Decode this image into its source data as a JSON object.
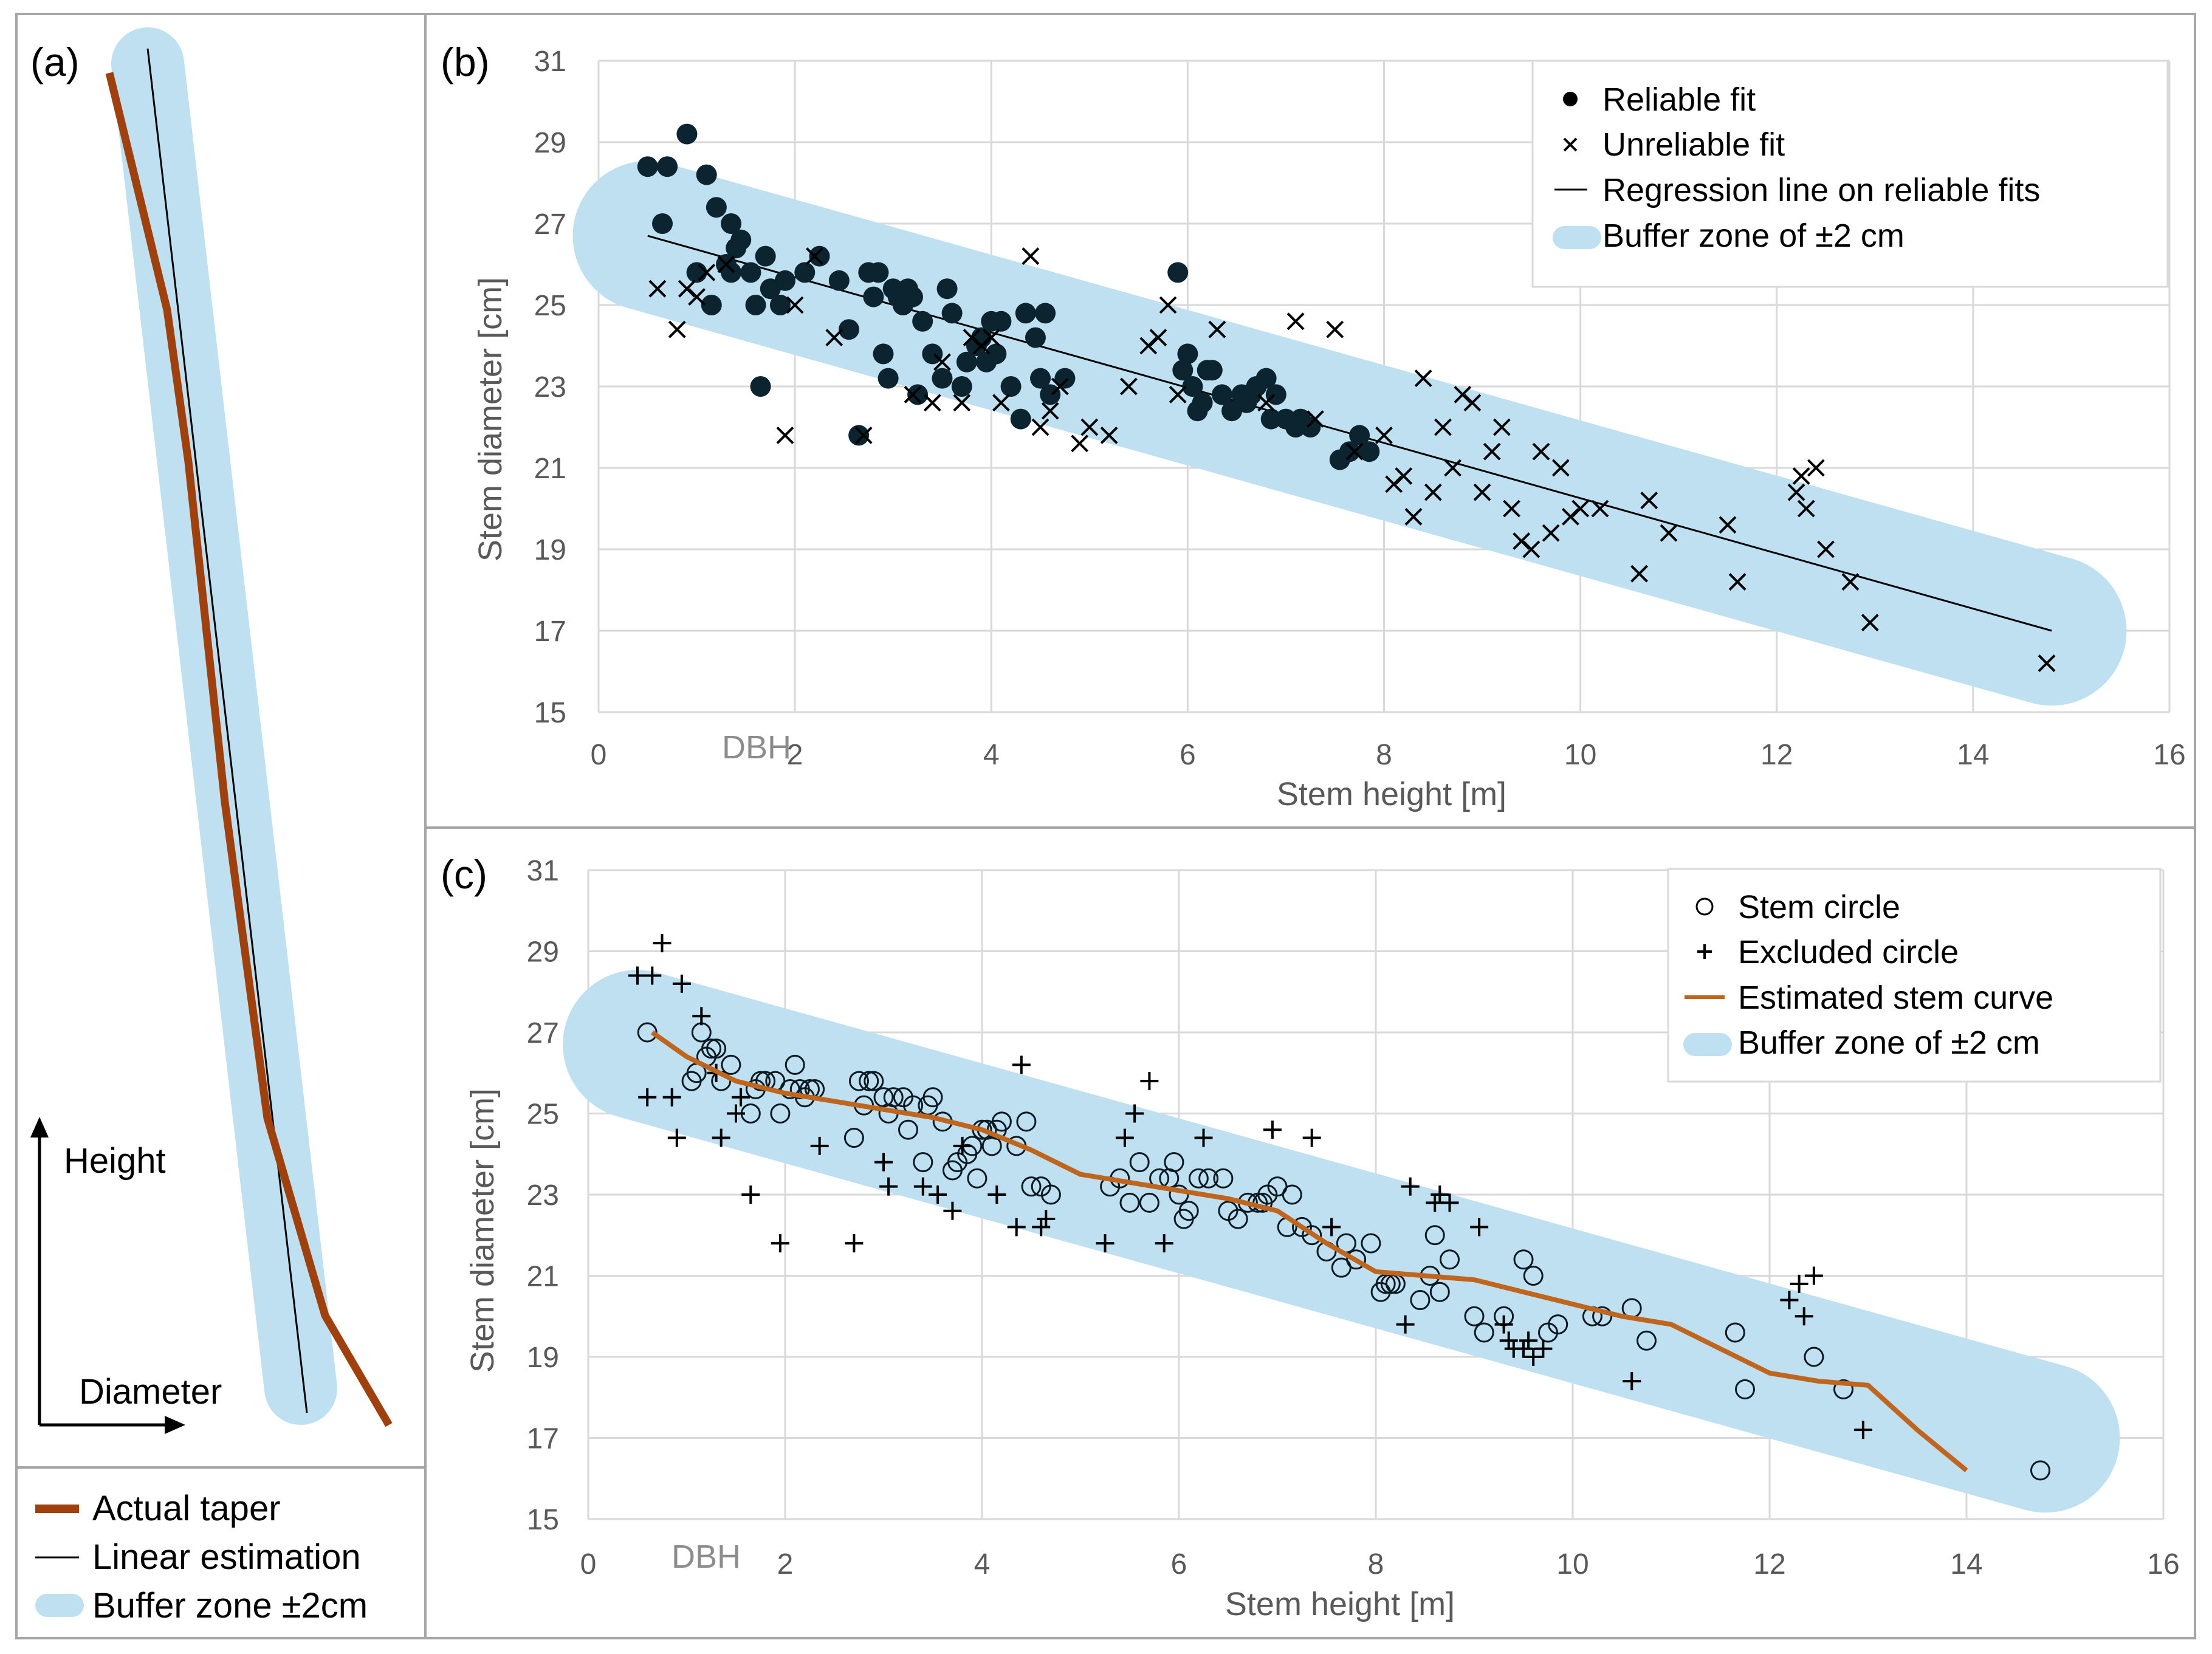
{
  "colors": {
    "buffer": "#bfe0f1",
    "taper": "#a0410d",
    "curve": "#c0651e",
    "grid": "#d9d9d9",
    "axis_text": "#595959"
  },
  "panel_a": {
    "label": "(a)",
    "height_label": "Height",
    "diameter_label": "Diameter",
    "legend": [
      {
        "label": "Actual taper",
        "kind": "thick-line"
      },
      {
        "label": "Linear estimation",
        "kind": "thin-line"
      },
      {
        "label": "Buffer zone ±2cm",
        "kind": "band"
      }
    ]
  },
  "chart_data": [
    {
      "id": "b",
      "type": "scatter",
      "panel_label": "(b)",
      "xlabel": "Stem height [m]",
      "ylabel": "Stem diameter [cm]",
      "xlim": [
        0,
        16
      ],
      "ylim": [
        15,
        31
      ],
      "xticks": [
        0,
        2,
        4,
        6,
        8,
        10,
        12,
        14,
        16
      ],
      "yticks": [
        15,
        17,
        19,
        21,
        23,
        25,
        27,
        29,
        31
      ],
      "grid": true,
      "dbh_marker": {
        "label": "DBH",
        "x": 1.3
      },
      "legend_position": "top-right",
      "legend": [
        "Reliable fit",
        "Unreliable fit",
        "Regression line on reliable fits",
        "Buffer zone of ±2 cm"
      ],
      "buffer": {
        "x": [
          0.5,
          14.8
        ],
        "y": [
          26.7,
          17.0
        ],
        "halfwidth_cm": 2
      },
      "regression_line": {
        "x": [
          0.5,
          14.8
        ],
        "y": [
          26.7,
          17.0
        ]
      },
      "series": [
        {
          "name": "Reliable fit",
          "marker": "filled-circle",
          "x": [
            0.5,
            0.65,
            0.7,
            0.9,
            1.0,
            1.1,
            1.15,
            1.2,
            1.3,
            1.35,
            1.35,
            1.4,
            1.45,
            1.55,
            1.6,
            1.65,
            1.7,
            1.75,
            1.85,
            1.9,
            2.1,
            2.25,
            2.45,
            2.55,
            2.65,
            2.75,
            2.8,
            2.85,
            2.9,
            2.95,
            3.0,
            3.05,
            3.1,
            3.15,
            3.2,
            3.25,
            3.3,
            3.4,
            3.5,
            3.55,
            3.6,
            3.7,
            3.75,
            3.85,
            3.9,
            3.95,
            4.0,
            4.05,
            4.1,
            4.2,
            4.3,
            4.35,
            4.45,
            4.5,
            4.55,
            4.6,
            4.75,
            5.9,
            5.95,
            6.0,
            6.05,
            6.1,
            6.15,
            6.2,
            6.25,
            6.35,
            6.45,
            6.55,
            6.6,
            6.65,
            6.7,
            6.8,
            6.85,
            6.9,
            7.0,
            7.1,
            7.15,
            7.25,
            7.55,
            7.65,
            7.75,
            7.85
          ],
          "y": [
            28.4,
            27.0,
            28.4,
            29.2,
            25.8,
            28.2,
            25.0,
            27.4,
            26.0,
            25.8,
            27.0,
            26.4,
            26.6,
            25.8,
            25.0,
            23.0,
            26.2,
            25.4,
            25.0,
            25.6,
            25.8,
            26.2,
            25.6,
            24.4,
            21.8,
            25.8,
            25.2,
            25.8,
            23.8,
            23.2,
            25.4,
            25.2,
            25.0,
            25.4,
            25.2,
            22.8,
            24.6,
            23.8,
            23.2,
            25.4,
            24.8,
            23.0,
            23.6,
            24.0,
            24.2,
            23.6,
            24.6,
            23.8,
            24.6,
            23.0,
            22.2,
            24.8,
            24.2,
            23.2,
            24.8,
            22.8,
            23.2,
            25.8,
            23.4,
            23.8,
            23.0,
            22.4,
            22.6,
            23.4,
            23.4,
            22.8,
            22.4,
            22.8,
            22.6,
            22.8,
            23.0,
            23.2,
            22.2,
            22.8,
            22.2,
            22.0,
            22.2,
            22.0,
            21.2,
            21.4,
            21.8,
            21.4
          ]
        },
        {
          "name": "Unreliable fit",
          "marker": "x",
          "x": [
            0.6,
            0.8,
            0.9,
            1.0,
            1.1,
            1.3,
            1.9,
            2.0,
            2.2,
            2.4,
            2.7,
            3.2,
            3.4,
            3.5,
            3.7,
            3.8,
            3.9,
            4.0,
            4.1,
            4.4,
            4.5,
            4.6,
            4.7,
            4.9,
            5.0,
            5.2,
            5.4,
            5.6,
            5.7,
            5.8,
            5.9,
            6.3,
            6.8,
            7.1,
            7.3,
            7.5,
            7.7,
            8.0,
            8.1,
            8.2,
            8.3,
            8.4,
            8.5,
            8.6,
            8.7,
            8.8,
            8.9,
            9.0,
            9.1,
            9.2,
            9.3,
            9.4,
            9.5,
            9.6,
            9.7,
            9.8,
            9.9,
            10.0,
            10.2,
            10.6,
            10.7,
            10.9,
            11.5,
            11.6,
            12.2,
            12.25,
            12.3,
            12.4,
            12.5,
            12.75,
            12.95,
            14.75
          ],
          "y": [
            25.4,
            24.4,
            25.4,
            25.2,
            25.8,
            26.0,
            21.8,
            25.0,
            26.2,
            24.2,
            21.8,
            22.8,
            22.6,
            23.6,
            22.6,
            24.2,
            24.0,
            24.2,
            22.6,
            26.2,
            22.0,
            22.4,
            23.0,
            21.6,
            22.0,
            21.8,
            23.0,
            24.0,
            24.2,
            25.0,
            22.8,
            24.4,
            22.6,
            24.6,
            22.2,
            24.4,
            21.4,
            21.8,
            20.6,
            20.8,
            19.8,
            23.2,
            20.4,
            22.0,
            21.0,
            22.8,
            22.6,
            20.4,
            21.4,
            22.0,
            20.0,
            19.2,
            19.0,
            21.4,
            19.4,
            21.0,
            19.8,
            20.0,
            20.0,
            18.4,
            20.2,
            19.4,
            19.6,
            18.2,
            20.4,
            20.8,
            20.0,
            21.0,
            19.0,
            18.2,
            17.2,
            16.2
          ]
        }
      ]
    },
    {
      "id": "c",
      "type": "scatter",
      "panel_label": "(c)",
      "xlabel": "Stem height [m]",
      "ylabel": "Stem diameter [cm]",
      "xlim": [
        0,
        16
      ],
      "ylim": [
        15,
        31
      ],
      "xticks": [
        0,
        2,
        4,
        6,
        8,
        10,
        12,
        14,
        16
      ],
      "yticks": [
        15,
        17,
        19,
        21,
        23,
        25,
        27,
        29,
        31
      ],
      "grid": true,
      "dbh_marker": {
        "label": "DBH",
        "x": 1.3
      },
      "legend_position": "top-right",
      "legend": [
        "Stem circle",
        "Excluded circle",
        "Estimated stem curve",
        "Buffer zone of ±2 cm"
      ],
      "buffer": {
        "x": [
          0.5,
          14.8
        ],
        "y": [
          26.7,
          17.0
        ],
        "halfwidth_cm": 2
      },
      "stem_curve": {
        "x": [
          0.65,
          1.0,
          1.5,
          2.0,
          2.5,
          3.0,
          3.5,
          4.0,
          4.5,
          5.0,
          5.5,
          6.0,
          6.5,
          7.0,
          7.5,
          8.0,
          8.5,
          9.0,
          9.5,
          10.0,
          10.5,
          11.0,
          11.5,
          12.0,
          12.5,
          13.0,
          13.5,
          14.0
        ],
        "y": [
          27.0,
          26.4,
          25.8,
          25.5,
          25.3,
          25.1,
          24.9,
          24.6,
          24.1,
          23.5,
          23.3,
          23.1,
          22.9,
          22.6,
          21.8,
          21.1,
          21.0,
          20.9,
          20.6,
          20.3,
          20.0,
          19.8,
          19.2,
          18.6,
          18.4,
          18.3,
          17.2,
          16.2
        ]
      },
      "series": [
        {
          "name": "Stem circle",
          "marker": "open-circle",
          "x": [
            0.6,
            1.05,
            1.1,
            1.15,
            1.2,
            1.25,
            1.3,
            1.35,
            1.45,
            1.65,
            1.7,
            1.75,
            1.8,
            1.9,
            1.95,
            2.05,
            2.1,
            2.15,
            2.2,
            2.25,
            2.3,
            2.7,
            2.75,
            2.8,
            2.85,
            2.9,
            3.0,
            3.05,
            3.1,
            3.2,
            3.25,
            3.3,
            3.4,
            3.45,
            3.5,
            3.6,
            3.7,
            3.75,
            3.85,
            3.9,
            3.95,
            4.0,
            4.05,
            4.1,
            4.15,
            4.2,
            4.35,
            4.45,
            4.5,
            4.6,
            4.7,
            5.3,
            5.4,
            5.5,
            5.6,
            5.7,
            5.8,
            5.9,
            5.95,
            6.0,
            6.05,
            6.1,
            6.2,
            6.3,
            6.45,
            6.5,
            6.6,
            6.7,
            6.8,
            6.85,
            6.9,
            7.0,
            7.1,
            7.15,
            7.25,
            7.35,
            7.5,
            7.65,
            7.7,
            7.8,
            7.95,
            8.05,
            8.1,
            8.15,
            8.2,
            8.45,
            8.55,
            8.6,
            8.65,
            8.75,
            9.0,
            9.1,
            9.3,
            9.5,
            9.6,
            9.75,
            9.85,
            10.2,
            10.3,
            10.6,
            10.75,
            11.65,
            11.75,
            12.45,
            12.75,
            14.75
          ],
          "y": [
            27.0,
            25.8,
            26.0,
            27.0,
            26.4,
            26.6,
            26.6,
            25.8,
            26.2,
            25.0,
            25.6,
            25.8,
            25.8,
            25.8,
            25.0,
            25.6,
            26.2,
            25.6,
            25.4,
            25.6,
            25.6,
            24.4,
            25.8,
            25.2,
            25.8,
            25.8,
            25.4,
            25.0,
            25.4,
            25.4,
            24.6,
            25.2,
            23.8,
            25.2,
            25.4,
            24.8,
            23.6,
            23.8,
            24.0,
            24.2,
            23.4,
            24.6,
            24.6,
            24.2,
            24.6,
            24.8,
            24.2,
            24.8,
            23.2,
            23.2,
            23.0,
            23.2,
            23.4,
            22.8,
            23.8,
            22.8,
            23.4,
            23.4,
            23.8,
            23.0,
            22.4,
            22.6,
            23.4,
            23.4,
            23.4,
            22.6,
            22.4,
            22.8,
            22.8,
            22.8,
            23.0,
            23.2,
            22.2,
            23.0,
            22.2,
            22.0,
            21.6,
            21.2,
            21.8,
            21.4,
            21.8,
            20.6,
            20.8,
            20.8,
            20.8,
            20.4,
            21.0,
            22.0,
            20.6,
            21.4,
            20.0,
            19.6,
            20.0,
            21.4,
            21.0,
            19.6,
            19.8,
            20.0,
            20.0,
            20.2,
            19.4,
            19.6,
            18.2,
            19.0,
            18.2,
            16.2
          ]
        },
        {
          "name": "Excluded circle",
          "marker": "plus",
          "x": [
            0.5,
            0.6,
            0.65,
            0.75,
            0.85,
            0.9,
            0.95,
            1.15,
            1.3,
            1.35,
            1.5,
            1.55,
            1.65,
            1.95,
            2.35,
            2.7,
            3.0,
            3.05,
            3.4,
            3.55,
            3.7,
            3.8,
            4.15,
            4.35,
            4.4,
            4.6,
            4.65,
            5.25,
            5.45,
            5.55,
            5.7,
            5.85,
            6.25,
            6.95,
            7.35,
            7.55,
            8.3,
            8.35,
            8.6,
            8.65,
            8.75,
            9.05,
            9.3,
            9.35,
            9.4,
            9.5,
            9.55,
            9.6,
            9.7,
            10.6,
            12.2,
            12.3,
            12.35,
            12.45,
            12.95
          ],
          "y": [
            28.4,
            25.4,
            28.4,
            29.2,
            25.4,
            24.4,
            28.2,
            27.4,
            26.0,
            24.4,
            25.0,
            25.4,
            23.0,
            21.8,
            24.2,
            21.8,
            23.8,
            23.2,
            23.2,
            23.0,
            22.6,
            24.2,
            23.0,
            22.2,
            26.2,
            22.2,
            22.4,
            21.8,
            24.4,
            25.0,
            25.8,
            21.8,
            24.4,
            24.6,
            24.4,
            22.2,
            19.8,
            23.2,
            22.8,
            23.0,
            22.8,
            22.2,
            19.8,
            19.4,
            19.2,
            19.2,
            19.4,
            19.0,
            19.2,
            18.4,
            20.4,
            20.8,
            20.0,
            21.0,
            17.2
          ]
        }
      ]
    }
  ]
}
